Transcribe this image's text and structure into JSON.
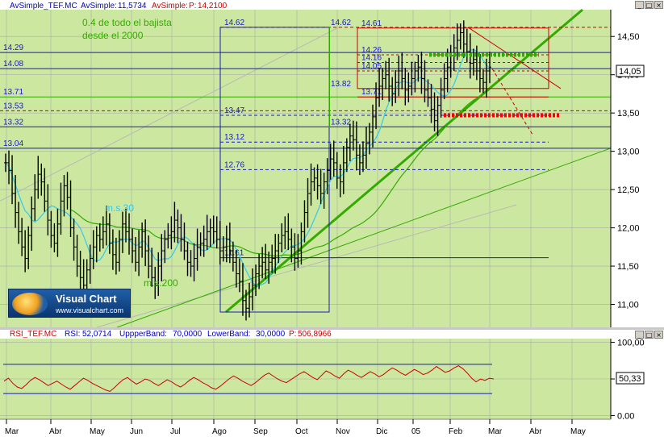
{
  "price_panel": {
    "header": {
      "label_1": "AvSimple_TEF.MC",
      "label_2": "AvSimple:",
      "value_2": "11,5734",
      "label_3": "AvSimple:",
      "label_p": "P:",
      "value_p": "14,2100"
    },
    "annotation_top": "0.4 de todo el bajista",
    "annotation_bottom": "desde el 2000",
    "ma30_label": "m.s.30",
    "ma200_label": "m.s.200",
    "price_tag": "14,05"
  },
  "rsi_panel": {
    "header": {
      "label_1": "RSI_TEF.MC",
      "label_2": "RSI:",
      "value_2": "52,0714",
      "label_3": "UppperBand:",
      "value_3": "70,0000",
      "label_4": "LowerBand:",
      "value_4": "30,0000",
      "label_5": "P:",
      "value_5": "506,8966"
    },
    "value_tag": "50,33"
  },
  "logo": {
    "title": "Visual Chart",
    "url": "www.visualchart.com"
  },
  "window_buttons": {
    "minimize": "_",
    "maximize": "□",
    "close": "×"
  },
  "colors": {
    "panel_bg": "#cce8a0",
    "blue": "#1a1ac0",
    "red": "#cc0000",
    "green": "#33aa00",
    "cyan": "#33c8ee",
    "header_blue": "#0000cc",
    "header_red": "#cc0000"
  },
  "chart_data": [
    {
      "type": "candlestick",
      "x_ticks": [
        "Mar",
        "Abr",
        "May",
        "Jun",
        "Jul",
        "Ago",
        "Sep",
        "Oct",
        "Nov",
        "Dic",
        "05",
        "Feb",
        "Mar",
        "Abr",
        "May"
      ],
      "y_ticks": [
        "14,50",
        "14,00",
        "13,50",
        "13,00",
        "12,50",
        "12,00",
        "11,50",
        "11,00"
      ],
      "ylim": [
        10.7,
        14.85
      ],
      "level_labels": [
        "14.62",
        "14.61",
        "14.29",
        "14.26",
        "14.16",
        "14.08",
        "14.05",
        "13.82",
        "13.71",
        "13.53",
        "13.47",
        "13.32",
        "13.12",
        "13.04",
        "12.76",
        "11.61"
      ],
      "closes": [
        12.85,
        12.75,
        12.45,
        12.2,
        11.95,
        11.75,
        11.6,
        11.9,
        12.25,
        12.5,
        12.7,
        12.6,
        12.35,
        12.1,
        11.9,
        11.8,
        12.05,
        12.35,
        12.55,
        12.4,
        12.0,
        11.75,
        11.5,
        11.35,
        11.25,
        11.45,
        11.6,
        11.75,
        11.9,
        11.85,
        11.95,
        12.05,
        11.8,
        11.65,
        11.55,
        11.85,
        12.05,
        11.95,
        11.85,
        11.7,
        11.55,
        11.75,
        11.95,
        11.7,
        11.5,
        11.35,
        11.25,
        11.5,
        11.7,
        11.85,
        11.9,
        11.95,
        12.1,
        12.0,
        11.85,
        11.7,
        11.55,
        11.5,
        11.6,
        11.75,
        11.8,
        11.85,
        11.95,
        12.0,
        11.95,
        11.85,
        11.7,
        11.75,
        11.85,
        11.7,
        11.55,
        11.4,
        11.3,
        11.05,
        10.95,
        11.1,
        11.25,
        11.4,
        11.5,
        11.55,
        11.45,
        11.55,
        11.6,
        11.7,
        11.8,
        11.9,
        11.95,
        11.85,
        11.75,
        11.6,
        11.7,
        11.95,
        12.2,
        12.45,
        12.6,
        12.65,
        12.55,
        12.45,
        12.6,
        12.75,
        12.9,
        12.85,
        12.65,
        12.6,
        12.85,
        13.05,
        13.2,
        13.15,
        12.95,
        12.85,
        12.95,
        13.1,
        13.25,
        13.45,
        13.7,
        13.85,
        13.95,
        14.0,
        13.85,
        13.75,
        13.9,
        14.05,
        13.95,
        13.8,
        13.85,
        13.95,
        14.05,
        14.1,
        13.95,
        13.8,
        13.7,
        13.55,
        13.4,
        13.6,
        13.8,
        13.95,
        14.1,
        14.25,
        14.35,
        14.45,
        14.55,
        14.4,
        14.3,
        14.15,
        14.2,
        14.05,
        13.95,
        13.9,
        14.05,
        14.1
      ],
      "series": [
        {
          "name": "m.s.30"
        },
        {
          "name": "m.s.200"
        }
      ]
    },
    {
      "type": "line",
      "series_name": "RSI",
      "y_ticks": [
        "100,00",
        "50,00",
        "0,00"
      ],
      "ylim": [
        -5,
        105
      ],
      "bands": [
        70,
        30
      ],
      "values": [
        47,
        51,
        44,
        39,
        37,
        42,
        48,
        52,
        49,
        45,
        41,
        44,
        47,
        43,
        39,
        36,
        41,
        46,
        51,
        48,
        44,
        41,
        38,
        35,
        33,
        38,
        44,
        49,
        52,
        47,
        43,
        46,
        50,
        48,
        44,
        41,
        45,
        49,
        46,
        42,
        39,
        43,
        48,
        52,
        49,
        45,
        42,
        38,
        36,
        40,
        45,
        50,
        54,
        51,
        47,
        44,
        41,
        45,
        50,
        55,
        58,
        54,
        50,
        47,
        45,
        49,
        53,
        57,
        60,
        56,
        52,
        49,
        55,
        61,
        58,
        54,
        51,
        57,
        62,
        59,
        55,
        52,
        56,
        60,
        57,
        53,
        56,
        61,
        65,
        62,
        58,
        55,
        59,
        63,
        60,
        56,
        58,
        62,
        67,
        63,
        59,
        61,
        65,
        68,
        64,
        58,
        51,
        46,
        50,
        48,
        51,
        50
      ]
    }
  ]
}
